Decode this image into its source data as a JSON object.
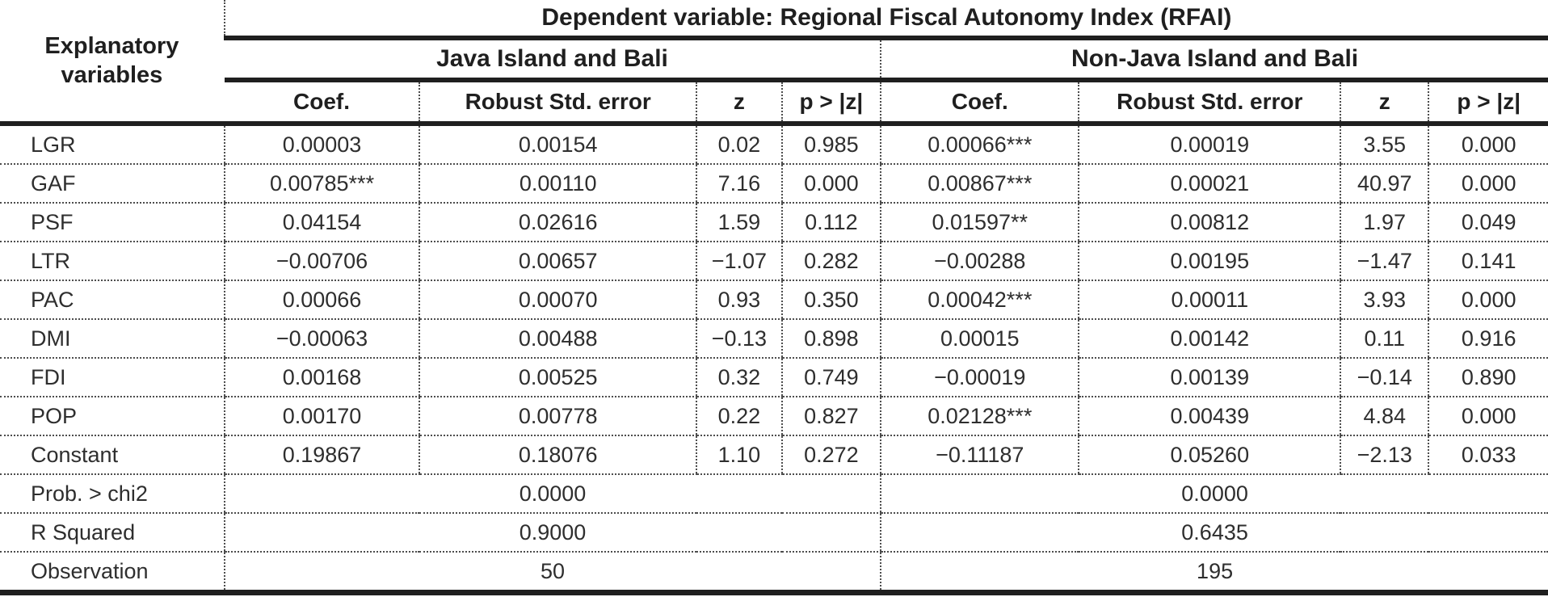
{
  "table": {
    "corner_header": "Explanatory\nvariables",
    "dependent_header": "Dependent variable: Regional Fiscal Autonomy Index (RFAI)",
    "groups": [
      {
        "label": "Java Island and Bali"
      },
      {
        "label": "Non-Java Island and Bali"
      }
    ],
    "column_headers": [
      "Coef.",
      "Robust Std. error",
      "z",
      "p > |z|"
    ],
    "rows": [
      {
        "label": "LGR",
        "cells": [
          "0.00003",
          "0.00154",
          "0.02",
          "0.985",
          "0.00066***",
          "0.00019",
          "3.55",
          "0.000"
        ]
      },
      {
        "label": "GAF",
        "cells": [
          "0.00785***",
          "0.00110",
          "7.16",
          "0.000",
          "0.00867***",
          "0.00021",
          "40.97",
          "0.000"
        ]
      },
      {
        "label": "PSF",
        "cells": [
          "0.04154",
          "0.02616",
          "1.59",
          "0.112",
          "0.01597**",
          "0.00812",
          "1.97",
          "0.049"
        ]
      },
      {
        "label": "LTR",
        "cells": [
          "−0.00706",
          "0.00657",
          "−1.07",
          "0.282",
          "−0.00288",
          "0.00195",
          "−1.47",
          "0.141"
        ]
      },
      {
        "label": "PAC",
        "cells": [
          "0.00066",
          "0.00070",
          "0.93",
          "0.350",
          "0.00042***",
          "0.00011",
          "3.93",
          "0.000"
        ]
      },
      {
        "label": "DMI",
        "cells": [
          "−0.00063",
          "0.00488",
          "−0.13",
          "0.898",
          "0.00015",
          "0.00142",
          "0.11",
          "0.916"
        ]
      },
      {
        "label": "FDI",
        "cells": [
          "0.00168",
          "0.00525",
          "0.32",
          "0.749",
          "−0.00019",
          "0.00139",
          "−0.14",
          "0.890"
        ]
      },
      {
        "label": "POP",
        "cells": [
          "0.00170",
          "0.00778",
          "0.22",
          "0.827",
          "0.02128***",
          "0.00439",
          "4.84",
          "0.000"
        ]
      },
      {
        "label": "Constant",
        "cells": [
          "0.19867",
          "0.18076",
          "1.10",
          "0.272",
          "−0.11187",
          "0.05260",
          "−2.13",
          "0.033"
        ]
      }
    ],
    "summary_rows": [
      {
        "label": "Prob. > chi2",
        "values": [
          "0.0000",
          "0.0000"
        ]
      },
      {
        "label": "R Squared",
        "values": [
          "0.9000",
          "0.6435"
        ]
      },
      {
        "label": "Observation",
        "values": [
          "50",
          "195"
        ]
      }
    ],
    "colors": {
      "text": "#2e2e2e",
      "header_text": "#1f1f1f",
      "thick_line": "#1f1f1f",
      "dotted_line": "#4d4d4d",
      "background": "#ffffff"
    }
  }
}
